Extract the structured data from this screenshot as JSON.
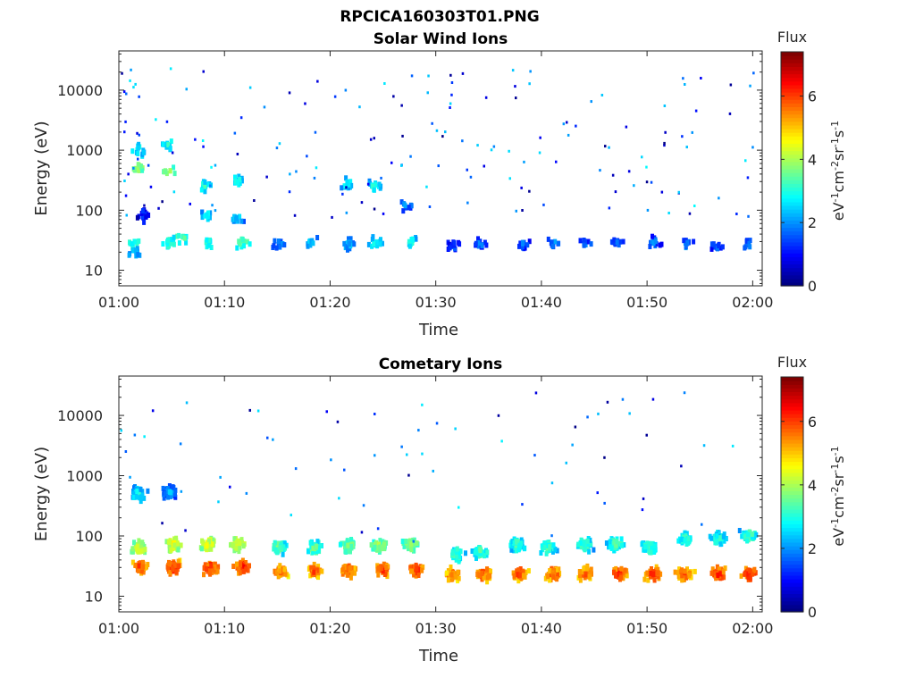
{
  "figure": {
    "filename": "RPCICA160303T01.PNG"
  },
  "chart_data": [
    {
      "type": "heatmap",
      "title": "Solar Wind Ions",
      "xlabel": "Time",
      "ylabel": "Energy (eV)",
      "x_ticks": [
        "01:00",
        "01:10",
        "01:20",
        "01:30",
        "01:40",
        "01:50",
        "02:00"
      ],
      "y_ticks": [
        "10",
        "100",
        "1000",
        "10000"
      ],
      "y_scale": "log",
      "xlim": [
        "01:00",
        "02:00"
      ],
      "ylim": [
        5.5,
        45000
      ],
      "colorbar": {
        "title": "Flux",
        "label": "eV-1cm-2sr-1s-1",
        "ticks": [
          "0",
          "2",
          "4",
          "6"
        ],
        "range": [
          0,
          7.4
        ],
        "colormap": "jet"
      },
      "mode": "sparse",
      "clusters": [
        {
          "t": 1.2,
          "e": 32,
          "v": 3.3
        },
        {
          "t": 1.4,
          "e": 22,
          "v": 2.6
        },
        {
          "t": 2.2,
          "e": 90,
          "v": 1.4
        },
        {
          "t": 1.7,
          "e": 550,
          "v": 4.0
        },
        {
          "t": 1.7,
          "e": 1100,
          "v": 3.0
        },
        {
          "t": 4.6,
          "e": 32,
          "v": 3.4
        },
        {
          "t": 4.5,
          "e": 500,
          "v": 4.0
        },
        {
          "t": 4.5,
          "e": 1400,
          "v": 3.0
        },
        {
          "t": 5.8,
          "e": 38,
          "v": 3.6
        },
        {
          "t": 8.3,
          "e": 32,
          "v": 3.2
        },
        {
          "t": 8.2,
          "e": 95,
          "v": 2.8
        },
        {
          "t": 8.0,
          "e": 280,
          "v": 3.0
        },
        {
          "t": 11.5,
          "e": 32,
          "v": 3.6
        },
        {
          "t": 11.0,
          "e": 80,
          "v": 2.6
        },
        {
          "t": 11.0,
          "e": 350,
          "v": 3.0
        },
        {
          "t": 15.0,
          "e": 30,
          "v": 2.0
        },
        {
          "t": 18.0,
          "e": 32,
          "v": 2.6
        },
        {
          "t": 21.5,
          "e": 30,
          "v": 2.4
        },
        {
          "t": 21.5,
          "e": 300,
          "v": 3.0
        },
        {
          "t": 24.2,
          "e": 32,
          "v": 3.0
        },
        {
          "t": 24.0,
          "e": 280,
          "v": 3.0
        },
        {
          "t": 27.5,
          "e": 32,
          "v": 3.0
        },
        {
          "t": 27.0,
          "e": 130,
          "v": 2.0
        },
        {
          "t": 31.5,
          "e": 28,
          "v": 1.6
        },
        {
          "t": 34.0,
          "e": 30,
          "v": 1.8
        },
        {
          "t": 38.0,
          "e": 30,
          "v": 1.8
        },
        {
          "t": 41.0,
          "e": 32,
          "v": 2.0
        },
        {
          "t": 44.0,
          "e": 30,
          "v": 1.8
        },
        {
          "t": 47.0,
          "e": 32,
          "v": 1.8
        },
        {
          "t": 50.5,
          "e": 32,
          "v": 1.8
        },
        {
          "t": 53.5,
          "e": 30,
          "v": 2.0
        },
        {
          "t": 56.5,
          "e": 28,
          "v": 1.8
        },
        {
          "t": 59.5,
          "e": 30,
          "v": 2.0
        }
      ]
    },
    {
      "type": "heatmap",
      "title": "Cometary Ions",
      "xlabel": "Time",
      "ylabel": "Energy (eV)",
      "x_ticks": [
        "01:00",
        "01:10",
        "01:20",
        "01:30",
        "01:40",
        "01:50",
        "02:00"
      ],
      "y_ticks": [
        "10",
        "100",
        "1000",
        "10000"
      ],
      "y_scale": "log",
      "xlim": [
        "01:00",
        "02:00"
      ],
      "ylim": [
        5.5,
        45000
      ],
      "colorbar": {
        "title": "Flux",
        "label": "eV-1cm-2sr-1s-1",
        "ticks": [
          "0",
          "2",
          "4",
          "6"
        ],
        "range": [
          0,
          7.4
        ],
        "colormap": "jet"
      },
      "mode": "dense",
      "clusters": [
        {
          "t": 1.8,
          "e": 33,
          "v": 6.0
        },
        {
          "t": 1.8,
          "e": 70,
          "v": 4.4
        },
        {
          "t": 1.7,
          "e": 550,
          "v": 3.0
        },
        {
          "t": 5.0,
          "e": 33,
          "v": 6.3
        },
        {
          "t": 5.0,
          "e": 80,
          "v": 4.6
        },
        {
          "t": 4.6,
          "e": 600,
          "v": 2.2
        },
        {
          "t": 8.5,
          "e": 32,
          "v": 6.3
        },
        {
          "t": 8.3,
          "e": 80,
          "v": 4.6
        },
        {
          "t": 11.5,
          "e": 33,
          "v": 6.4
        },
        {
          "t": 11.0,
          "e": 80,
          "v": 4.6
        },
        {
          "t": 15.2,
          "e": 28,
          "v": 5.8
        },
        {
          "t": 15.0,
          "e": 70,
          "v": 3.6
        },
        {
          "t": 18.4,
          "e": 29,
          "v": 6.0
        },
        {
          "t": 18.4,
          "e": 70,
          "v": 3.6
        },
        {
          "t": 21.6,
          "e": 29,
          "v": 6.0
        },
        {
          "t": 21.6,
          "e": 75,
          "v": 3.8
        },
        {
          "t": 24.8,
          "e": 30,
          "v": 6.2
        },
        {
          "t": 24.5,
          "e": 75,
          "v": 4.0
        },
        {
          "t": 28.0,
          "e": 30,
          "v": 6.2
        },
        {
          "t": 27.5,
          "e": 80,
          "v": 4.0
        },
        {
          "t": 31.4,
          "e": 25,
          "v": 5.8
        },
        {
          "t": 31.8,
          "e": 55,
          "v": 3.4
        },
        {
          "t": 34.3,
          "e": 26,
          "v": 6.0
        },
        {
          "t": 34.0,
          "e": 60,
          "v": 3.4
        },
        {
          "t": 37.8,
          "e": 26,
          "v": 6.0
        },
        {
          "t": 37.5,
          "e": 80,
          "v": 3.4
        },
        {
          "t": 41.0,
          "e": 26,
          "v": 6.0
        },
        {
          "t": 40.5,
          "e": 70,
          "v": 3.4
        },
        {
          "t": 44.0,
          "e": 26,
          "v": 6.0
        },
        {
          "t": 44.0,
          "e": 80,
          "v": 3.4
        },
        {
          "t": 47.2,
          "e": 26,
          "v": 6.2
        },
        {
          "t": 46.8,
          "e": 80,
          "v": 3.4
        },
        {
          "t": 50.4,
          "e": 26,
          "v": 6.2
        },
        {
          "t": 50.0,
          "e": 70,
          "v": 3.4
        },
        {
          "t": 53.4,
          "e": 26,
          "v": 6.0
        },
        {
          "t": 53.5,
          "e": 100,
          "v": 3.2
        },
        {
          "t": 56.6,
          "e": 26,
          "v": 6.2
        },
        {
          "t": 56.5,
          "e": 100,
          "v": 3.2
        },
        {
          "t": 59.6,
          "e": 26,
          "v": 6.2
        },
        {
          "t": 59.5,
          "e": 110,
          "v": 3.4
        }
      ]
    }
  ]
}
